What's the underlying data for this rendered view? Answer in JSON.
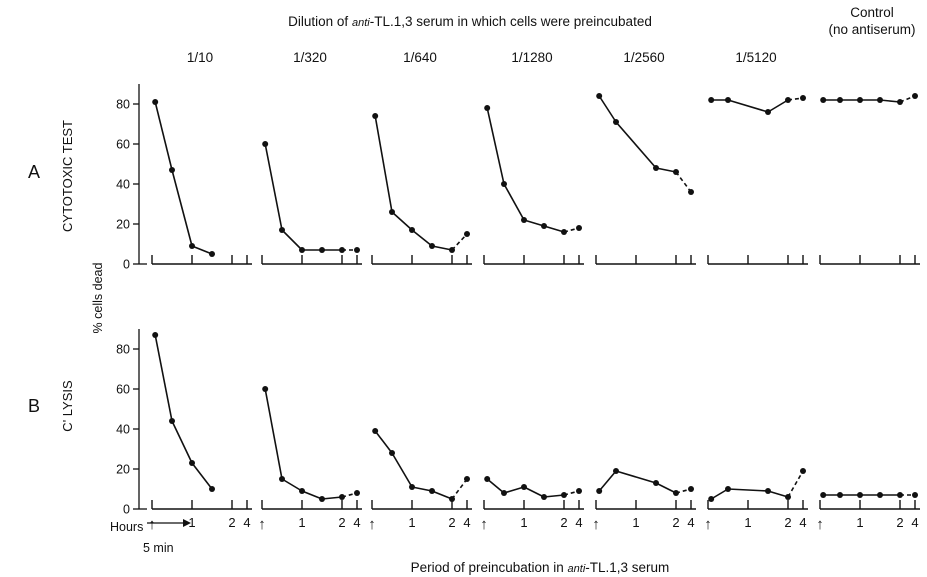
{
  "chart_data": {
    "type": "line",
    "title": "Dilution of anti-TL.1,3 serum in which cells were preincubated",
    "title_parts": [
      "Dilution of ",
      "anti",
      "-TL.1,3 serum in which cells were preincubated"
    ],
    "xlabel": "Period of preincubation in anti-TL.1,3 serum",
    "xlabel_parts": [
      "Period of preincubation in ",
      "anti",
      "-TL.1,3 serum"
    ],
    "ylabel": "% cells dead",
    "ylim": [
      0,
      88
    ],
    "y_ticks": [
      0,
      20,
      40,
      60,
      80
    ],
    "x_tick_labels": [
      "↑",
      "1",
      "2",
      "4"
    ],
    "x_hours_label": "Hours",
    "x_start_label": "5 min",
    "dilutions": [
      "1/10",
      "1/320",
      "1/640",
      "1/1280",
      "1/2560",
      "1/5120"
    ],
    "control_label": [
      "Control",
      "(no antiserum)"
    ],
    "panels": [
      {
        "letter": "A",
        "name": "CYTOTOXIC TEST",
        "series": [
          {
            "dilution": "1/10",
            "x": [
              0.08,
              0.5,
              1.0,
              1.5
            ],
            "y": [
              81,
              47,
              9,
              5
            ]
          },
          {
            "dilution": "1/320",
            "x": [
              0.08,
              0.5,
              1.0,
              1.5,
              2.0,
              3.0
            ],
            "y": [
              60,
              17,
              7,
              7,
              7,
              7
            ]
          },
          {
            "dilution": "1/640",
            "x": [
              0.08,
              0.5,
              1.0,
              1.5,
              2.0,
              3.0
            ],
            "y": [
              74,
              26,
              17,
              9,
              7,
              15
            ]
          },
          {
            "dilution": "1/1280",
            "x": [
              0.08,
              0.5,
              1.0,
              1.5,
              2.0,
              3.0
            ],
            "y": [
              78,
              40,
              22,
              19,
              16,
              18
            ]
          },
          {
            "dilution": "1/2560",
            "x": [
              0.08,
              0.5,
              1.5,
              2.0,
              3.0
            ],
            "y": [
              84,
              71,
              48,
              46,
              36
            ]
          },
          {
            "dilution": "1/5120",
            "x": [
              0.08,
              0.5,
              1.5,
              2.0,
              3.0
            ],
            "y": [
              82,
              82,
              76,
              82,
              83
            ]
          },
          {
            "dilution": "Control",
            "x": [
              0.08,
              0.5,
              1.0,
              1.5,
              2.0,
              3.0
            ],
            "y": [
              82,
              82,
              82,
              82,
              81,
              84
            ]
          }
        ]
      },
      {
        "letter": "B",
        "name": "C' LYSIS",
        "series": [
          {
            "dilution": "1/10",
            "x": [
              0.08,
              0.5,
              1.0,
              1.5
            ],
            "y": [
              87,
              44,
              23,
              10
            ]
          },
          {
            "dilution": "1/320",
            "x": [
              0.08,
              0.5,
              1.0,
              1.5,
              2.0,
              3.0
            ],
            "y": [
              60,
              15,
              9,
              5,
              6,
              8
            ]
          },
          {
            "dilution": "1/640",
            "x": [
              0.08,
              0.5,
              1.0,
              1.5,
              2.0,
              3.0
            ],
            "y": [
              39,
              28,
              11,
              9,
              5,
              15
            ]
          },
          {
            "dilution": "1/1280",
            "x": [
              0.08,
              0.5,
              1.0,
              1.5,
              2.0,
              3.0
            ],
            "y": [
              15,
              8,
              11,
              6,
              7,
              9
            ]
          },
          {
            "dilution": "1/2560",
            "x": [
              0.08,
              0.5,
              1.5,
              2.0,
              3.0
            ],
            "y": [
              9,
              19,
              13,
              8,
              10
            ]
          },
          {
            "dilution": "1/5120",
            "x": [
              0.08,
              0.5,
              1.5,
              2.0,
              3.0
            ],
            "y": [
              5,
              10,
              9,
              6,
              19
            ]
          },
          {
            "dilution": "Control",
            "x": [
              0.08,
              0.5,
              1.0,
              1.5,
              2.0,
              3.0
            ],
            "y": [
              7,
              7,
              7,
              7,
              7,
              7
            ]
          }
        ]
      }
    ]
  }
}
